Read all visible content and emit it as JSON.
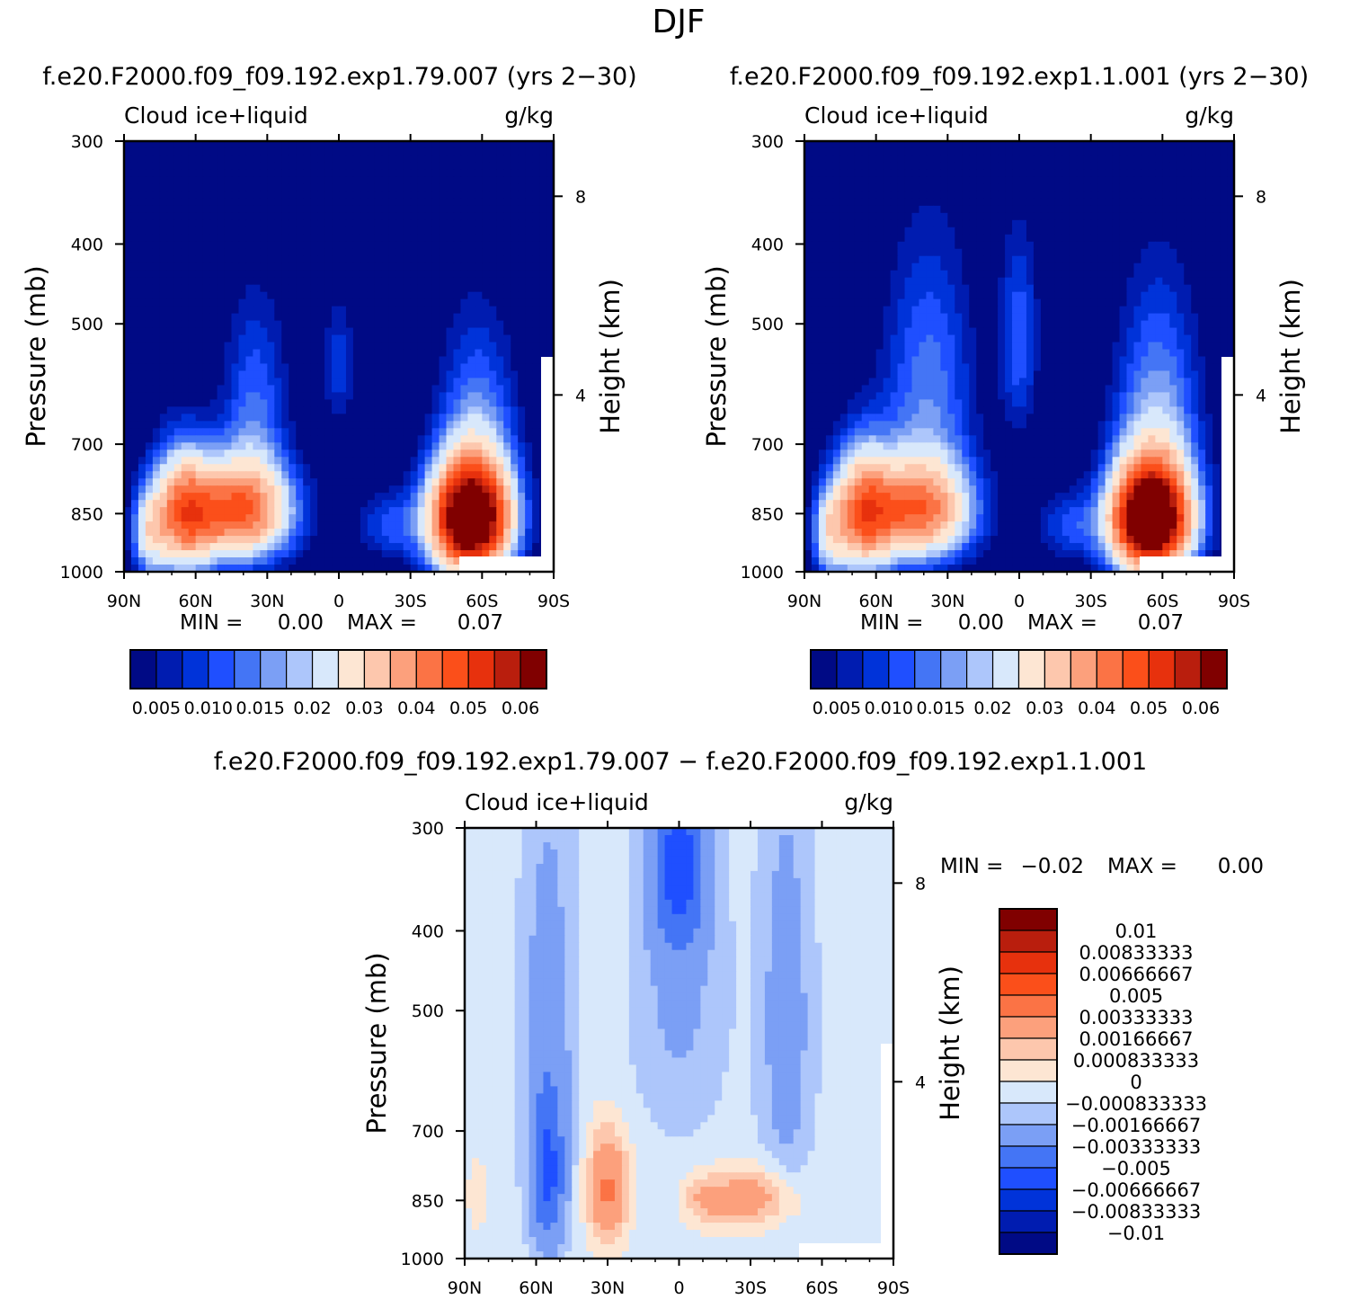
{
  "figure": {
    "title": "DJF",
    "diff_title": "f.e20.F2000.f09_f09.192.exp1.79.007 − f.e20.F2000.f09_f09.192.exp1.1.001"
  },
  "chart_data": [
    {
      "type": "heatmap",
      "id": "panel-a",
      "title": "f.e20.F2000.f09_f09.192.exp1.79.007 (yrs 2−30)",
      "left_label": "Cloud ice+liquid",
      "right_label": "g/kg",
      "xlabel": "",
      "ylabel": "Pressure (mb)",
      "y2label": "Height (km)",
      "xticks": [
        "90N",
        "60N",
        "30N",
        "0",
        "30S",
        "60S",
        "90S"
      ],
      "xlim": [
        90,
        -90
      ],
      "yticks": [
        300,
        400,
        500,
        700,
        850,
        1000
      ],
      "ylim": [
        300,
        1000
      ],
      "y2ticks": [
        {
          "label": "8",
          "p": 350
        },
        {
          "label": "4",
          "p": 610
        }
      ],
      "min_label": "MIN =",
      "min_value": "0.00",
      "max_label": "MAX =",
      "max_value": "0.07",
      "colorbar_labels": [
        "0.005",
        "0.010",
        "0.015",
        "0.02",
        "0.03",
        "0.04",
        "0.05",
        "0.06"
      ],
      "features": [
        {
          "lat": 42,
          "p": 845,
          "value": 0.045,
          "slat": 16,
          "sp": 85
        },
        {
          "lat": 66,
          "p": 850,
          "value": 0.034,
          "slat": 9,
          "sp": 110
        },
        {
          "lat": 80,
          "p": 900,
          "value": 0.018,
          "slat": 5,
          "sp": 80
        },
        {
          "lat": 35,
          "p": 620,
          "value": 0.012,
          "slat": 10,
          "sp": 130
        },
        {
          "lat": 0,
          "p": 560,
          "value": 0.01,
          "slat": 5,
          "sp": 70
        },
        {
          "lat": -55,
          "p": 865,
          "value": 0.075,
          "slat": 12,
          "sp": 95
        },
        {
          "lat": -58,
          "p": 680,
          "value": 0.015,
          "slat": 12,
          "sp": 150
        },
        {
          "lat": -20,
          "p": 880,
          "value": 0.01,
          "slat": 10,
          "sp": 60
        }
      ]
    },
    {
      "type": "heatmap",
      "id": "panel-b",
      "title": "f.e20.F2000.f09_f09.192.exp1.1.001 (yrs 2−30)",
      "left_label": "Cloud ice+liquid",
      "right_label": "g/kg",
      "xlabel": "",
      "ylabel": "Pressure (mb)",
      "y2label": "Height (km)",
      "xticks": [
        "90N",
        "60N",
        "30N",
        "0",
        "30S",
        "60S",
        "90S"
      ],
      "xlim": [
        90,
        -90
      ],
      "yticks": [
        300,
        400,
        500,
        700,
        850,
        1000
      ],
      "ylim": [
        300,
        1000
      ],
      "y2ticks": [
        {
          "label": "8",
          "p": 350
        },
        {
          "label": "4",
          "p": 610
        }
      ],
      "min_label": "MIN =",
      "min_value": "0.00",
      "max_label": "MAX =",
      "max_value": "0.07",
      "colorbar_labels": [
        "0.005",
        "0.010",
        "0.015",
        "0.02",
        "0.03",
        "0.04",
        "0.05",
        "0.06"
      ],
      "features": [
        {
          "lat": 42,
          "p": 845,
          "value": 0.04,
          "slat": 16,
          "sp": 85
        },
        {
          "lat": 66,
          "p": 850,
          "value": 0.036,
          "slat": 9,
          "sp": 110
        },
        {
          "lat": 80,
          "p": 900,
          "value": 0.018,
          "slat": 5,
          "sp": 80
        },
        {
          "lat": 38,
          "p": 600,
          "value": 0.014,
          "slat": 14,
          "sp": 170
        },
        {
          "lat": 0,
          "p": 520,
          "value": 0.012,
          "slat": 6,
          "sp": 110
        },
        {
          "lat": -55,
          "p": 865,
          "value": 0.075,
          "slat": 12,
          "sp": 95
        },
        {
          "lat": -58,
          "p": 660,
          "value": 0.017,
          "slat": 13,
          "sp": 170
        },
        {
          "lat": -20,
          "p": 880,
          "value": 0.01,
          "slat": 10,
          "sp": 60
        }
      ]
    },
    {
      "type": "heatmap",
      "id": "panel-diff",
      "title": "f.e20.F2000.f09_f09.192.exp1.79.007 − f.e20.F2000.f09_f09.192.exp1.1.001",
      "left_label": "Cloud ice+liquid",
      "right_label": "g/kg",
      "xlabel": "",
      "ylabel": "Pressure (mb)",
      "y2label": "Height (km)",
      "xticks": [
        "90N",
        "60N",
        "30N",
        "0",
        "30S",
        "60S",
        "90S"
      ],
      "xlim": [
        90,
        -90
      ],
      "yticks": [
        300,
        400,
        500,
        700,
        850,
        1000
      ],
      "ylim": [
        300,
        1000
      ],
      "y2ticks": [
        {
          "label": "8",
          "p": 350
        },
        {
          "label": "4",
          "p": 610
        }
      ],
      "min_label": "MIN =",
      "min_value": "−0.02",
      "max_label": "MAX =",
      "max_value": "0.00",
      "colorbar_labels": [
        "0.01",
        "0.00833333",
        "0.00666667",
        "0.005",
        "0.00333333",
        "0.00166667",
        "0.000833333",
        "0",
        "−0.000833333",
        "−0.00166667",
        "−0.00333333",
        "−0.005",
        "−0.00666667",
        "−0.00833333",
        "−0.01"
      ],
      "features": [
        {
          "lat": 30,
          "p": 820,
          "value": 0.004,
          "slat": 6,
          "sp": 90
        },
        {
          "lat": -30,
          "p": 845,
          "value": 0.003,
          "slat": 14,
          "sp": 50
        },
        {
          "lat": -10,
          "p": 850,
          "value": 0.0015,
          "slat": 6,
          "sp": 40
        },
        {
          "lat": 55,
          "p": 800,
          "value": -0.0045,
          "slat": 5,
          "sp": 120
        },
        {
          "lat": 55,
          "p": 520,
          "value": -0.002,
          "slat": 8,
          "sp": 220
        },
        {
          "lat": -45,
          "p": 520,
          "value": -0.002,
          "slat": 8,
          "sp": 230
        },
        {
          "lat": 0,
          "p": 330,
          "value": -0.005,
          "slat": 8,
          "sp": 60
        },
        {
          "lat": 0,
          "p": 480,
          "value": -0.0015,
          "slat": 14,
          "sp": 150
        },
        {
          "lat": 85,
          "p": 840,
          "value": 0.0009,
          "slat": 3,
          "sp": 70
        }
      ]
    }
  ],
  "palette": {
    "cloud": [
      "#000a85",
      "#001cb0",
      "#0033d9",
      "#1f4fff",
      "#4475f5",
      "#7b9ff5",
      "#adc6fb",
      "#d8e8fb",
      "#fde6d3",
      "#fdc7ad",
      "#fca07c",
      "#fb7345",
      "#fb4f1a",
      "#e7310d",
      "#b91e0d",
      "#800000"
    ],
    "diff": [
      "#000a85",
      "#001cb0",
      "#0033d9",
      "#1f4fff",
      "#4475f5",
      "#7b9ff5",
      "#adc6fb",
      "#d8e8fb",
      "#fde6d3",
      "#fdc7ad",
      "#fca07c",
      "#fb7345",
      "#fb4f1a",
      "#e7310d",
      "#b91e0d",
      "#800000"
    ]
  }
}
